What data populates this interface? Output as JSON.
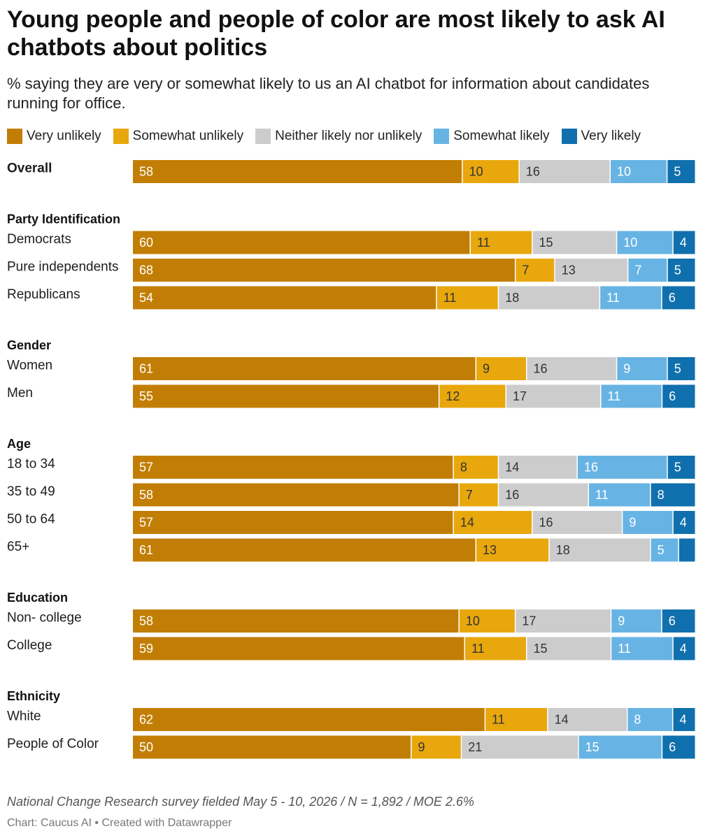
{
  "header": {
    "title": "Young people and people of color are most likely to ask AI chatbots about politics",
    "subtitle": "% saying they are very or somewhat likely to us an AI chatbot for information about candidates running for office."
  },
  "footer": {
    "note": "National Change Research survey fielded May 5 - 10, 2026 / N = 1,892 / MOE 2.6%",
    "credit": "Chart: Caucus AI • Created with Datawrapper"
  },
  "chart_data": {
    "type": "bar",
    "stacked": true,
    "orientation": "horizontal",
    "xlim": [
      0,
      100
    ],
    "legend": "top-left",
    "series": [
      {
        "name": "Very unlikely",
        "color": "#c27e04"
      },
      {
        "name": "Somewhat unlikely",
        "color": "#e8a70d"
      },
      {
        "name": "Neither likely nor unlikely",
        "color": "#cccccc"
      },
      {
        "name": "Somewhat likely",
        "color": "#67b4e4"
      },
      {
        "name": "Very likely",
        "color": "#1070ad"
      }
    ],
    "label_colors": [
      "#ffffff",
      "#333333",
      "#333333",
      "#ffffff",
      "#ffffff"
    ],
    "groups": [
      {
        "title": "",
        "rows": [
          {
            "label": "Overall",
            "values": [
              58,
              10,
              16,
              10,
              5
            ],
            "bold": true
          }
        ]
      },
      {
        "title": "Party Identification",
        "rows": [
          {
            "label": "Democrats",
            "values": [
              60,
              11,
              15,
              10,
              4
            ]
          },
          {
            "label": "Pure independents",
            "values": [
              68,
              7,
              13,
              7,
              5
            ]
          },
          {
            "label": "Republicans",
            "values": [
              54,
              11,
              18,
              11,
              6
            ]
          }
        ]
      },
      {
        "title": "Gender",
        "rows": [
          {
            "label": "Women",
            "values": [
              61,
              9,
              16,
              9,
              5
            ]
          },
          {
            "label": "Men",
            "values": [
              55,
              12,
              17,
              11,
              6
            ]
          }
        ]
      },
      {
        "title": "Age",
        "rows": [
          {
            "label": "18 to 34",
            "values": [
              57,
              8,
              14,
              16,
              5
            ]
          },
          {
            "label": "35 to 49",
            "values": [
              58,
              7,
              16,
              11,
              8
            ]
          },
          {
            "label": "50 to 64",
            "values": [
              57,
              14,
              16,
              9,
              4
            ]
          },
          {
            "label": "65+",
            "values": [
              61,
              13,
              18,
              5,
              3
            ]
          }
        ]
      },
      {
        "title": "Education",
        "rows": [
          {
            "label": "Non- college",
            "values": [
              58,
              10,
              17,
              9,
              6
            ]
          },
          {
            "label": "College",
            "values": [
              59,
              11,
              15,
              11,
              4
            ]
          }
        ]
      },
      {
        "title": "Ethnicity",
        "rows": [
          {
            "label": "White",
            "values": [
              62,
              11,
              14,
              8,
              4
            ]
          },
          {
            "label": "People of Color",
            "values": [
              50,
              9,
              21,
              15,
              6
            ]
          }
        ]
      }
    ]
  }
}
